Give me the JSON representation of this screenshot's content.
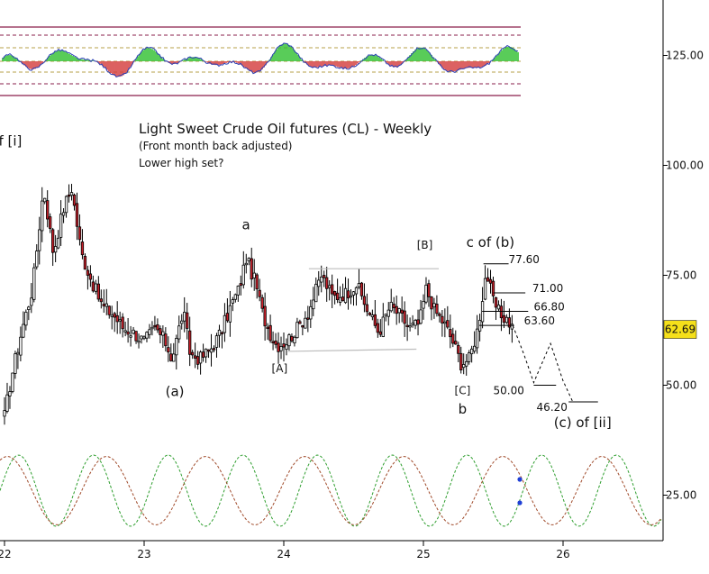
{
  "chart_data": {
    "type": "candlestick",
    "title": "Light Sweet Crude Oil futures (CL) - Weekly",
    "subtitle": "(Front month back adjusted)",
    "note": "Lower high set?",
    "y_axis": {
      "ticks": [
        125,
        100,
        75,
        50,
        25
      ],
      "tick_labels": [
        "125.00",
        "100.00",
        "75.00",
        "50.00",
        "25.00"
      ],
      "position": "right"
    },
    "x_axis": {
      "ticks": [
        "22",
        "23",
        "24",
        "25",
        "26"
      ]
    },
    "last_price": {
      "value": 62.69,
      "label": "62.69",
      "color": "#f5e01a"
    },
    "price_keypoints": [
      [
        22.0,
        43
      ],
      [
        22.05,
        52
      ],
      [
        22.12,
        62
      ],
      [
        22.2,
        72
      ],
      [
        22.28,
        95
      ],
      [
        22.35,
        80
      ],
      [
        22.42,
        90
      ],
      [
        22.48,
        95
      ],
      [
        22.55,
        80
      ],
      [
        22.62,
        74
      ],
      [
        22.7,
        68
      ],
      [
        22.78,
        66
      ],
      [
        22.85,
        63
      ],
      [
        22.92,
        62
      ],
      [
        23.0,
        60
      ],
      [
        23.08,
        63
      ],
      [
        23.15,
        60
      ],
      [
        23.2,
        56
      ],
      [
        23.28,
        67
      ],
      [
        23.33,
        57
      ],
      [
        23.4,
        56
      ],
      [
        23.47,
        58
      ],
      [
        23.55,
        62
      ],
      [
        23.62,
        68
      ],
      [
        23.68,
        72
      ],
      [
        23.73,
        79
      ],
      [
        23.8,
        73
      ],
      [
        23.85,
        66
      ],
      [
        23.9,
        62
      ],
      [
        23.95,
        59
      ],
      [
        24.02,
        60
      ],
      [
        24.1,
        63
      ],
      [
        24.18,
        67
      ],
      [
        24.27,
        75
      ],
      [
        24.35,
        70
      ],
      [
        24.45,
        71
      ],
      [
        24.52,
        73
      ],
      [
        24.6,
        67
      ],
      [
        24.68,
        62
      ],
      [
        24.76,
        68
      ],
      [
        24.83,
        66
      ],
      [
        24.9,
        63
      ],
      [
        24.97,
        64
      ],
      [
        25.02,
        72
      ],
      [
        25.08,
        67
      ],
      [
        25.15,
        64
      ],
      [
        25.21,
        60
      ],
      [
        25.27,
        55
      ],
      [
        25.33,
        56
      ],
      [
        25.39,
        63
      ],
      [
        25.45,
        76
      ],
      [
        25.5,
        69
      ],
      [
        25.55,
        66
      ],
      [
        25.6,
        65
      ],
      [
        25.64,
        63
      ]
    ],
    "projection": [
      {
        "x": 25.64,
        "y": 63.6
      },
      {
        "x": 25.72,
        "y": 57.0
      },
      {
        "x": 25.79,
        "y": 50.6
      },
      {
        "x": 25.91,
        "y": 59.5
      },
      {
        "x": 26.0,
        "y": 51.0
      },
      {
        "x": 26.07,
        "y": 46.2
      }
    ],
    "support_channel": [
      {
        "x1": 24.18,
        "y1": 76.5,
        "x2": 25.11,
        "y2": 76.5
      },
      {
        "x1": 24.03,
        "y1": 57.7,
        "x2": 24.95,
        "y2": 58.2
      }
    ],
    "levels": [
      {
        "value": 77.6,
        "label": "77.60"
      },
      {
        "value": 71.0,
        "label": "71.00"
      },
      {
        "value": 66.8,
        "label": "66.80"
      },
      {
        "value": 63.6,
        "label": "63.60"
      },
      {
        "value": 50.0,
        "label": "50.00"
      },
      {
        "value": 46.2,
        "label": "46.20"
      }
    ],
    "wave_labels": [
      {
        "text": "(v) of [i]",
        "x": 21.93,
        "y": 104.5,
        "size": "large"
      },
      {
        "text": "a",
        "x": 23.73,
        "y": 85.5,
        "size": "large"
      },
      {
        "text": "(a)",
        "x": 23.22,
        "y": 47.5,
        "size": "large"
      },
      {
        "text": "[A]",
        "x": 23.97,
        "y": 53.0,
        "size": "small"
      },
      {
        "text": "[B]",
        "x": 25.01,
        "y": 81.0,
        "size": "small"
      },
      {
        "text": "c of (b)",
        "x": 25.48,
        "y": 81.5,
        "size": "large"
      },
      {
        "text": "[C]",
        "x": 25.28,
        "y": 48.0,
        "size": "small"
      },
      {
        "text": "b",
        "x": 25.28,
        "y": 43.5,
        "size": "large"
      },
      {
        "text": "(c) of [ii]",
        "x": 26.14,
        "y": 40.5,
        "size": "large"
      }
    ],
    "oscillator_panel": {
      "position": "top",
      "series": [
        {
          "kind": "histogram",
          "up_color": "#2fbf2f",
          "down_color": "#d43a3a"
        },
        {
          "kind": "line",
          "color": "#2a3fb5"
        }
      ],
      "bands": "dashed reference lines, maroon outer bounds"
    },
    "cycle_panel": {
      "position": "bottom",
      "series": [
        {
          "kind": "sine",
          "color": "#2e9e2e",
          "style": "dashed"
        },
        {
          "kind": "sine",
          "color": "#a04a2a",
          "style": "dashed"
        }
      ],
      "current_markers": {
        "color": "#1f3fd6"
      }
    }
  }
}
